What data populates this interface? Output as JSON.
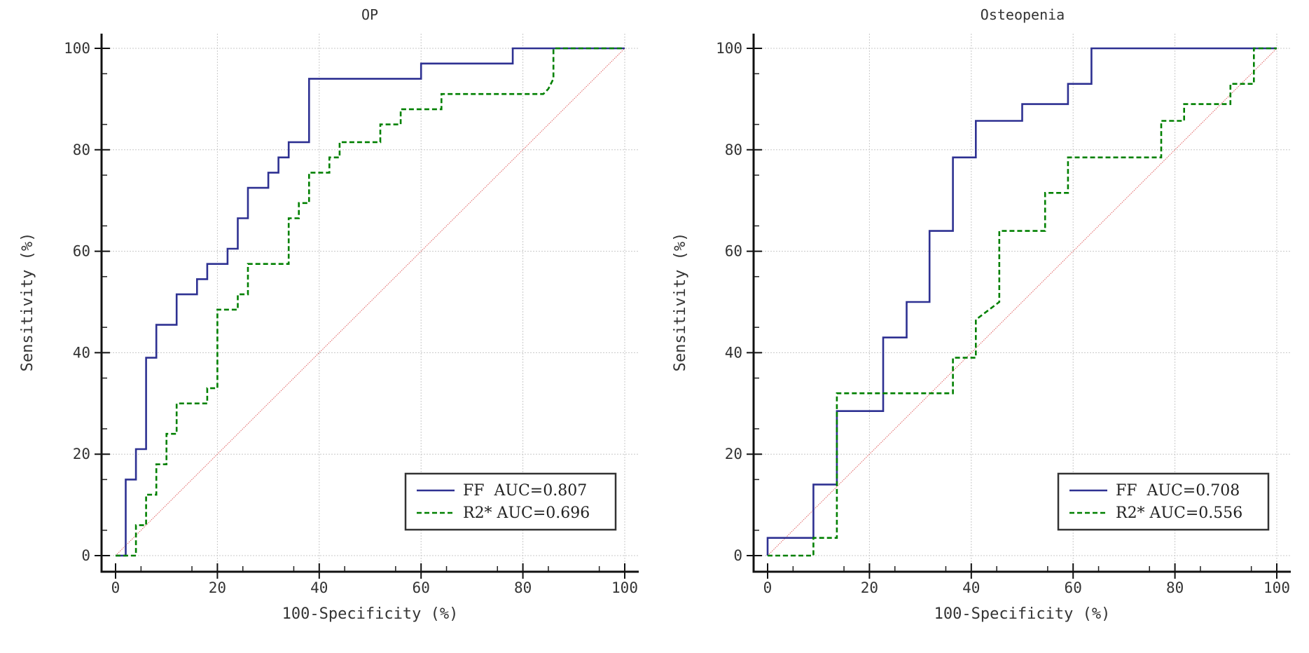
{
  "chart_data": [
    {
      "type": "line",
      "title": "OP",
      "xlabel": "100-Specificity (%)",
      "ylabel": "Sensitivity (%)",
      "xlim": [
        0,
        100
      ],
      "ylim": [
        0,
        100
      ],
      "xticks": [
        0,
        20,
        40,
        60,
        80,
        100
      ],
      "yticks": [
        0,
        20,
        40,
        60,
        80,
        100
      ],
      "grid": true,
      "legend_position": "bottom-right",
      "reference_line": [
        [
          0,
          0
        ],
        [
          100,
          100
        ]
      ],
      "series": [
        {
          "name": "FF",
          "legend_label": "FF  AUC=0.807",
          "auc": 0.807,
          "style": "solid",
          "color": "#2e3192",
          "points": [
            [
              0,
              0
            ],
            [
              2,
              0
            ],
            [
              2,
              15
            ],
            [
              4,
              15
            ],
            [
              4,
              21
            ],
            [
              6,
              21
            ],
            [
              6,
              39
            ],
            [
              8,
              39
            ],
            [
              8,
              45.5
            ],
            [
              12,
              45.5
            ],
            [
              12,
              51.5
            ],
            [
              16,
              51.5
            ],
            [
              16,
              54.5
            ],
            [
              18,
              54.5
            ],
            [
              18,
              57.5
            ],
            [
              22,
              57.5
            ],
            [
              22,
              60.5
            ],
            [
              24,
              60.5
            ],
            [
              24,
              66.5
            ],
            [
              26,
              66.5
            ],
            [
              26,
              72.5
            ],
            [
              30,
              72.5
            ],
            [
              30,
              75.5
            ],
            [
              32,
              75.5
            ],
            [
              32,
              78.5
            ],
            [
              34,
              78.5
            ],
            [
              34,
              81.5
            ],
            [
              38,
              81.5
            ],
            [
              38,
              94
            ],
            [
              60,
              94
            ],
            [
              60,
              97
            ],
            [
              78,
              97
            ],
            [
              78,
              100
            ],
            [
              100,
              100
            ]
          ]
        },
        {
          "name": "R2*",
          "legend_label": "R2* AUC=0.696",
          "auc": 0.696,
          "style": "dashed",
          "color": "#008000",
          "points": [
            [
              0,
              0
            ],
            [
              4,
              0
            ],
            [
              4,
              6
            ],
            [
              6,
              6
            ],
            [
              6,
              12
            ],
            [
              8,
              12
            ],
            [
              8,
              18
            ],
            [
              10,
              18
            ],
            [
              10,
              24
            ],
            [
              12,
              24
            ],
            [
              12,
              30
            ],
            [
              18,
              30
            ],
            [
              18,
              33
            ],
            [
              20,
              33
            ],
            [
              20,
              48.5
            ],
            [
              24,
              48.5
            ],
            [
              24,
              51.5
            ],
            [
              26,
              51.5
            ],
            [
              26,
              57.5
            ],
            [
              34,
              57.5
            ],
            [
              34,
              66.5
            ],
            [
              36,
              66.5
            ],
            [
              36,
              69.5
            ],
            [
              38,
              69.5
            ],
            [
              38,
              75.5
            ],
            [
              42,
              75.5
            ],
            [
              42,
              78.5
            ],
            [
              44,
              78.5
            ],
            [
              44,
              81.5
            ],
            [
              52,
              81.5
            ],
            [
              52,
              85
            ],
            [
              56,
              85
            ],
            [
              56,
              88
            ],
            [
              64,
              88
            ],
            [
              64,
              91
            ],
            [
              84,
              91
            ],
            [
              85,
              92
            ],
            [
              86,
              94
            ],
            [
              86,
              100
            ],
            [
              100,
              100
            ]
          ]
        }
      ]
    },
    {
      "type": "line",
      "title": "Osteopenia",
      "xlabel": "100-Specificity (%)",
      "ylabel": "Sensitivity (%)",
      "xlim": [
        0,
        100
      ],
      "ylim": [
        0,
        100
      ],
      "xticks": [
        0,
        20,
        40,
        60,
        80,
        100
      ],
      "yticks": [
        0,
        20,
        40,
        60,
        80,
        100
      ],
      "grid": true,
      "legend_position": "bottom-right",
      "reference_line": [
        [
          0,
          0
        ],
        [
          100,
          100
        ]
      ],
      "series": [
        {
          "name": "FF",
          "legend_label": "FF  AUC=0.708",
          "auc": 0.708,
          "style": "solid",
          "color": "#2e3192",
          "points": [
            [
              0,
              0
            ],
            [
              0,
              3.5
            ],
            [
              9,
              3.5
            ],
            [
              9,
              14
            ],
            [
              13.6,
              14
            ],
            [
              13.6,
              28.5
            ],
            [
              22.7,
              28.5
            ],
            [
              22.7,
              43
            ],
            [
              27.3,
              43
            ],
            [
              27.3,
              50
            ],
            [
              31.8,
              50
            ],
            [
              31.8,
              64
            ],
            [
              36.4,
              64
            ],
            [
              36.4,
              78.5
            ],
            [
              40.9,
              78.5
            ],
            [
              40.9,
              85.7
            ],
            [
              50,
              85.7
            ],
            [
              50,
              89
            ],
            [
              59,
              89
            ],
            [
              59,
              93
            ],
            [
              63.6,
              93
            ],
            [
              63.6,
              100
            ],
            [
              100,
              100
            ]
          ]
        },
        {
          "name": "R2*",
          "legend_label": "R2* AUC=0.556",
          "auc": 0.556,
          "style": "dashed",
          "color": "#008000",
          "points": [
            [
              0,
              0
            ],
            [
              9,
              0
            ],
            [
              9,
              3.5
            ],
            [
              13.6,
              3.5
            ],
            [
              13.6,
              32
            ],
            [
              36.4,
              32
            ],
            [
              36.4,
              39
            ],
            [
              40.9,
              39
            ],
            [
              40.9,
              46.5
            ],
            [
              45.5,
              50
            ],
            [
              45.5,
              64
            ],
            [
              54.5,
              64
            ],
            [
              54.5,
              71.5
            ],
            [
              59,
              71.5
            ],
            [
              59,
              78.5
            ],
            [
              77.3,
              78.5
            ],
            [
              77.3,
              85.7
            ],
            [
              81.8,
              85.7
            ],
            [
              81.8,
              89
            ],
            [
              90.9,
              89
            ],
            [
              90.9,
              93
            ],
            [
              95.5,
              93
            ],
            [
              95.5,
              100
            ],
            [
              100,
              100
            ]
          ]
        }
      ]
    }
  ]
}
